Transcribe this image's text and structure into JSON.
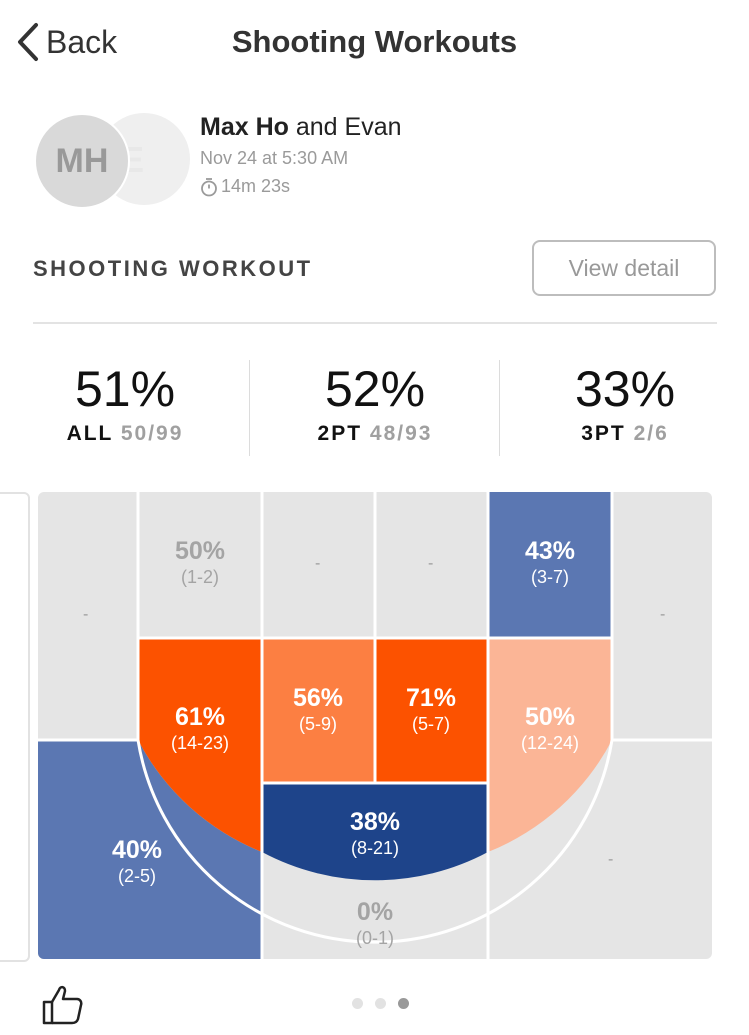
{
  "header": {
    "back_label": "Back",
    "title": "Shooting Workouts"
  },
  "workout": {
    "avatar_primary": "MH",
    "avatar_secondary": "E",
    "player_main": "Max Ho",
    "player_connector": " and ",
    "player_other": "Evan",
    "datetime": "Nov 24 at 5:30 AM",
    "duration": "14m 23s"
  },
  "section": {
    "title": "SHOOTING WORKOUT",
    "view_detail_label": "View detail"
  },
  "stats": [
    {
      "pct": "51%",
      "label": "ALL",
      "fraction": "50/99"
    },
    {
      "pct": "52%",
      "label": "2PT",
      "fraction": "48/93"
    },
    {
      "pct": "33%",
      "label": "3PT",
      "fraction": "2/6"
    }
  ],
  "zones": {
    "top_left_far": "-",
    "top_left": {
      "pct": "50%",
      "count": "(1-2)"
    },
    "top_center_left": "-",
    "top_center_right": "-",
    "top_right": {
      "pct": "43%",
      "count": "(3-7)"
    },
    "top_right_far": "-",
    "mid_left": {
      "pct": "61%",
      "count": "(14-23)"
    },
    "paint_left": {
      "pct": "56%",
      "count": "(5-9)"
    },
    "paint_right": {
      "pct": "71%",
      "count": "(5-7)"
    },
    "mid_right": {
      "pct": "50%",
      "count": "(12-24)"
    },
    "corner_left": {
      "pct": "40%",
      "count": "(2-5)"
    },
    "rim": {
      "pct": "38%",
      "count": "(8-21)"
    },
    "bottom_center": {
      "pct": "0%",
      "count": "(0-1)"
    },
    "corner_right": "-"
  },
  "colors": {
    "orange_dark": "#fc5200",
    "orange_mid": "#fc7f42",
    "orange_light": "#fbb596",
    "blue_dark": "#1e448a",
    "blue_mid": "#5b77b2",
    "grey_zone": "#e5e5e5"
  },
  "pagination": {
    "count": 3,
    "active": 3
  },
  "icons": {
    "back": "chevron-left-icon",
    "timer": "stopwatch-icon",
    "like": "thumbs-up-icon"
  }
}
